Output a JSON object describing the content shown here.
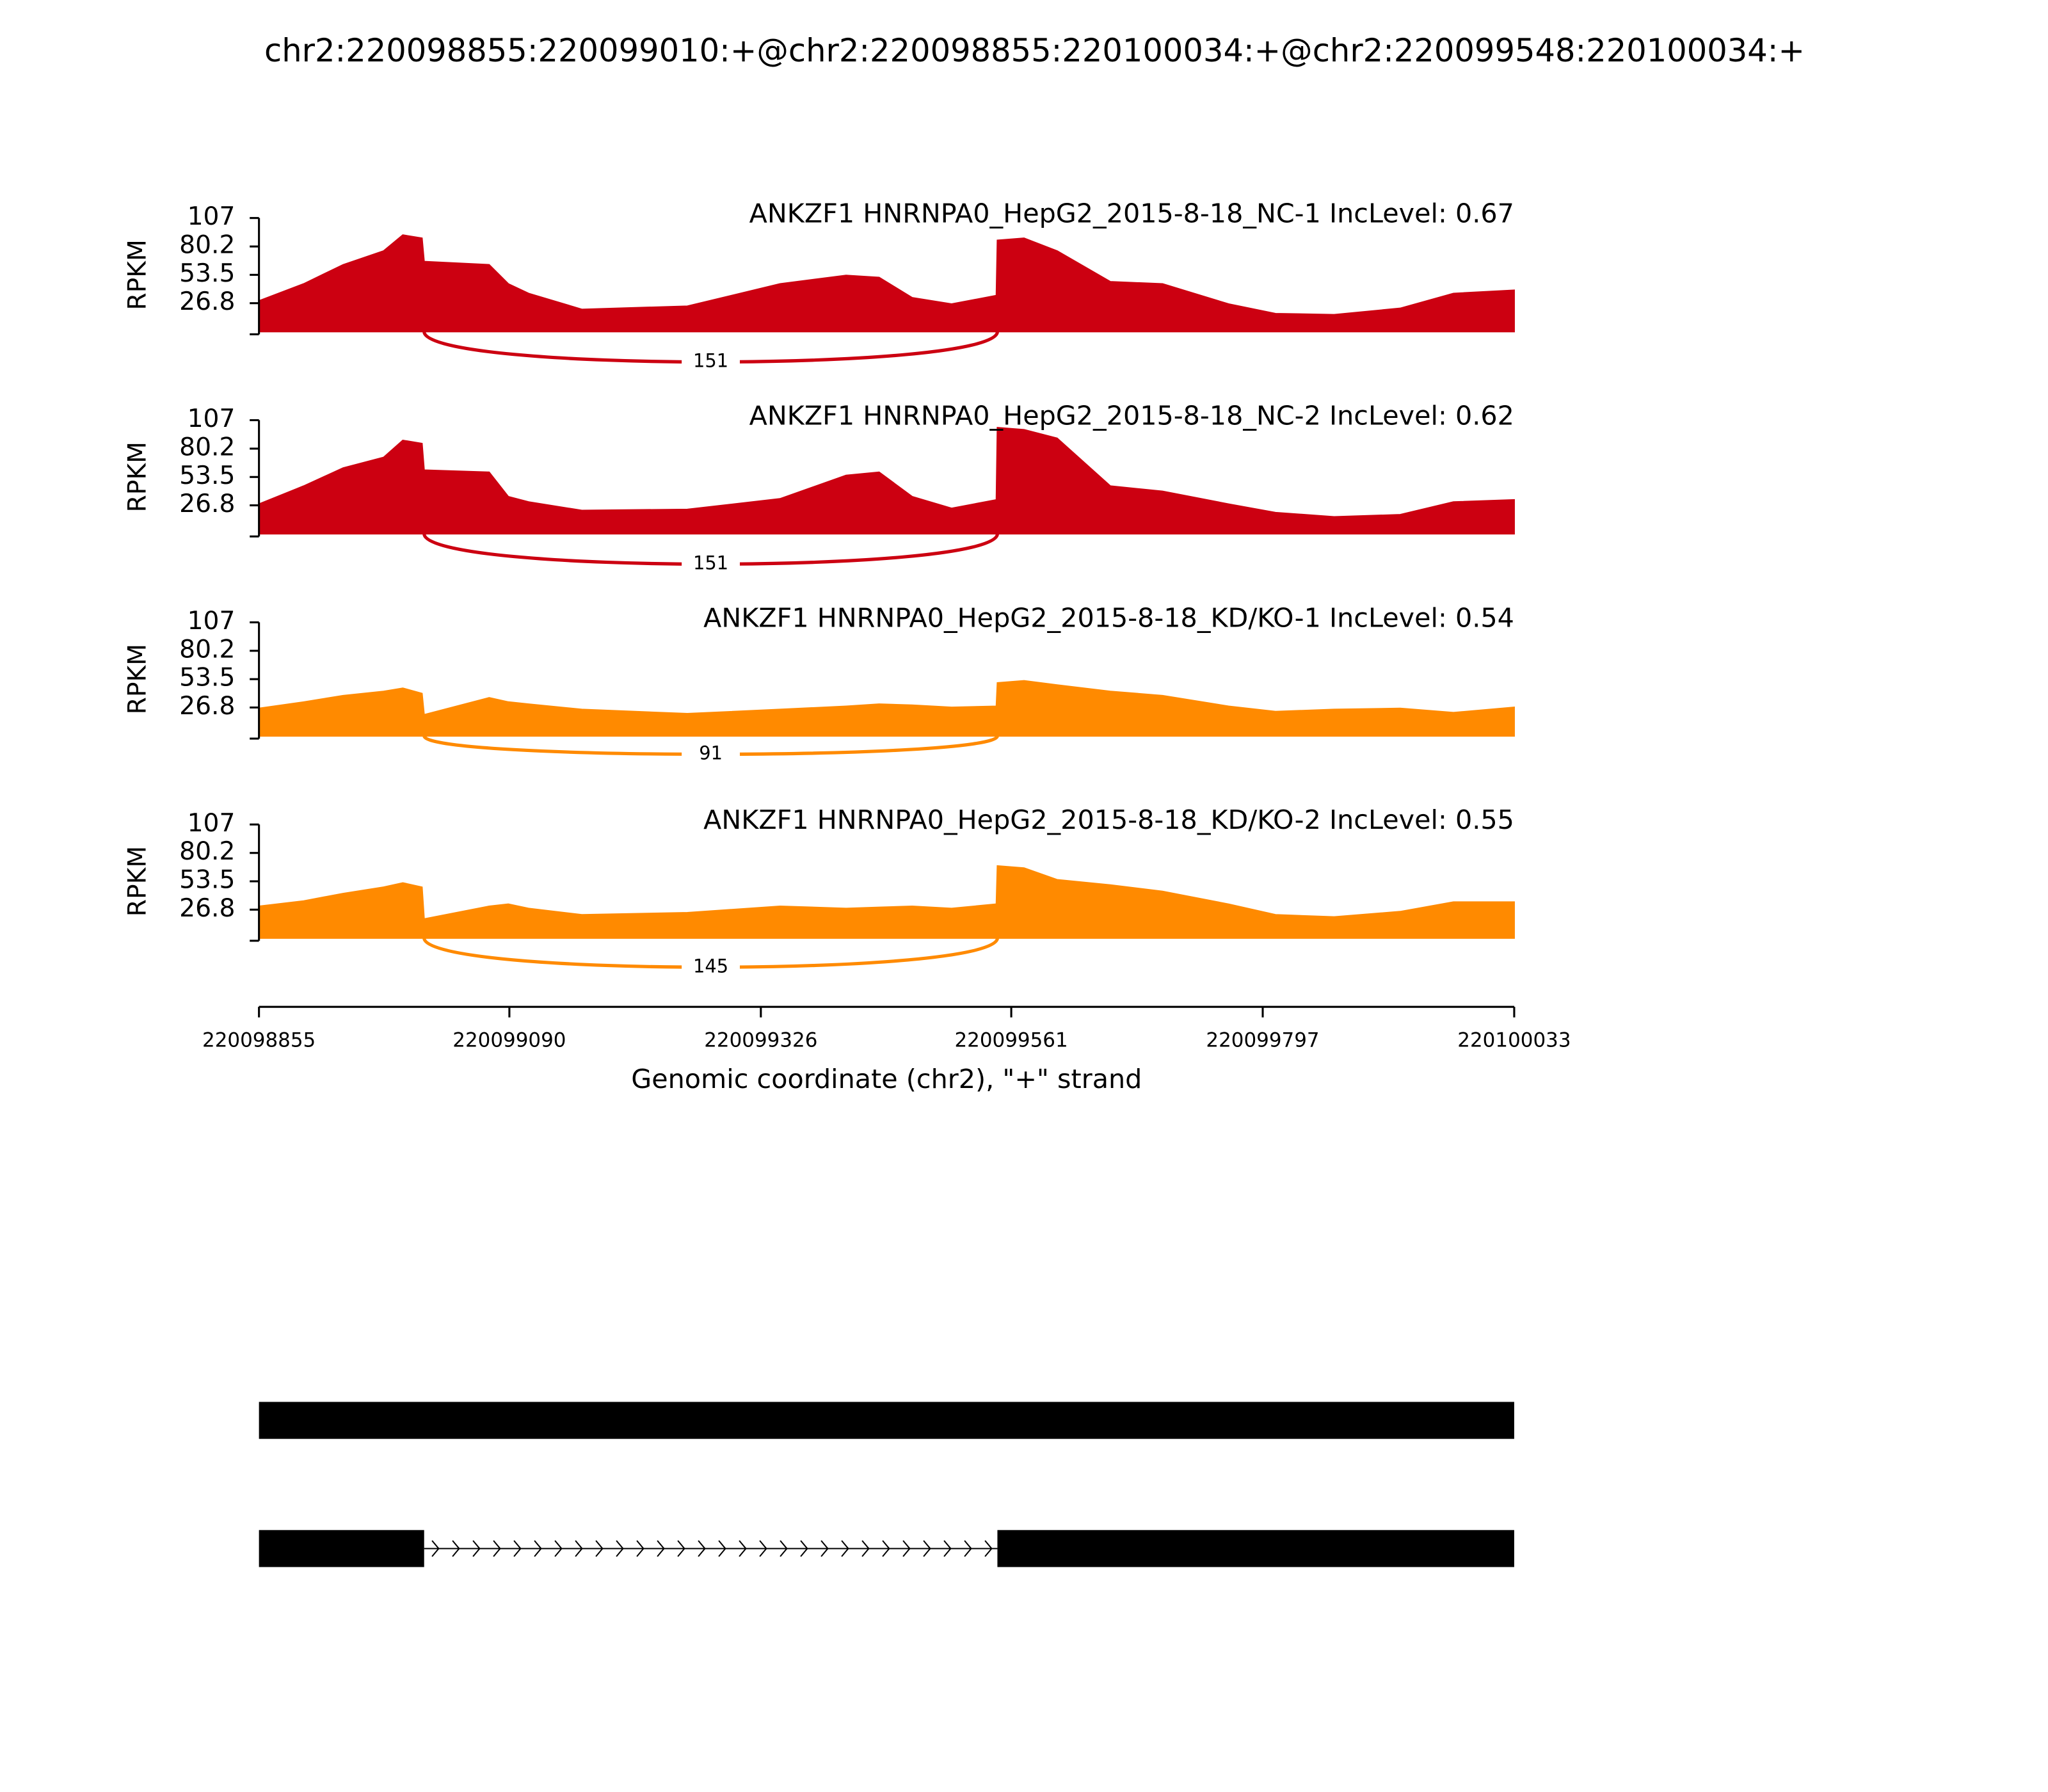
{
  "title": "chr2:220098855:220099010:+@chr2:220098855:220100034:+@chr2:220099548:220100034:+",
  "chart_data": [
    {
      "type": "area",
      "title": "ANKZF1 HNRNPA0_HepG2_2015-8-18_NC-1 IncLevel: 0.67",
      "color": "#cc0011",
      "ylabel": "RPKM",
      "xlim": [
        220098855,
        220100033
      ],
      "ylim": [
        0,
        107
      ],
      "yticks": [
        26.8,
        53.5,
        80.2,
        107
      ],
      "x": [
        220098855,
        220098897,
        220098934,
        220098972,
        220098990,
        220099008,
        220099010,
        220099071,
        220099089,
        220099108,
        220099158,
        220099257,
        220099344,
        220099406,
        220099437,
        220099468,
        220099505,
        220099547,
        220099548,
        220099573,
        220099604,
        220099654,
        220099703,
        220099765,
        220099809,
        220099864,
        220099926,
        220099976,
        220100033
      ],
      "values": [
        29,
        45,
        63,
        76,
        91,
        88,
        66,
        63,
        45,
        36,
        21,
        24,
        45,
        53,
        51,
        32,
        26,
        34,
        86,
        88,
        76,
        47,
        45,
        26,
        17,
        16,
        22,
        36,
        39
      ],
      "junctions": [
        {
          "start": 220099010,
          "end": 220099548,
          "count": 151
        }
      ]
    },
    {
      "type": "area",
      "title": "ANKZF1 HNRNPA0_HepG2_2015-8-18_NC-2 IncLevel: 0.62",
      "color": "#cc0011",
      "ylabel": "RPKM",
      "xlim": [
        220098855,
        220100033
      ],
      "ylim": [
        0,
        107
      ],
      "yticks": [
        26.8,
        53.5,
        80.2,
        107
      ],
      "x": [
        220098855,
        220098897,
        220098934,
        220098972,
        220098990,
        220099008,
        220099010,
        220099071,
        220099089,
        220099108,
        220099158,
        220099257,
        220099344,
        220099406,
        220099437,
        220099468,
        220099505,
        220099547,
        220099548,
        220099573,
        220099604,
        220099654,
        220099703,
        220099765,
        220099809,
        220099864,
        220099926,
        220099976,
        220100033
      ],
      "values": [
        28,
        45,
        62,
        72,
        88,
        85,
        60,
        58,
        35,
        30,
        22,
        23,
        33,
        55,
        58,
        35,
        24,
        32,
        100,
        98,
        90,
        45,
        40,
        28,
        20,
        16,
        18,
        30,
        32
      ],
      "junctions": [
        {
          "start": 220099010,
          "end": 220099548,
          "count": 151
        }
      ]
    },
    {
      "type": "area",
      "title": "ANKZF1 HNRNPA0_HepG2_2015-8-18_KD/KO-1 IncLevel: 0.54",
      "color": "#ff8a00",
      "ylabel": "RPKM",
      "xlim": [
        220098855,
        220100033
      ],
      "ylim": [
        0,
        107
      ],
      "yticks": [
        26.8,
        53.5,
        80.2,
        107
      ],
      "x": [
        220098855,
        220098897,
        220098934,
        220098972,
        220098990,
        220099008,
        220099010,
        220099071,
        220099089,
        220099108,
        220099158,
        220099257,
        220099344,
        220099406,
        220099437,
        220099468,
        220099505,
        220099547,
        220099548,
        220099573,
        220099604,
        220099654,
        220099703,
        220099765,
        220099809,
        220099864,
        220099926,
        220099976,
        220100033
      ],
      "values": [
        26,
        32,
        38,
        42,
        45,
        40,
        20,
        36,
        32,
        30,
        25,
        21,
        25,
        28,
        30,
        29,
        27,
        28,
        50,
        52,
        48,
        42,
        38,
        28,
        23,
        25,
        26,
        22,
        27
      ],
      "junctions": [
        {
          "start": 220099010,
          "end": 220099548,
          "count": 91
        }
      ]
    },
    {
      "type": "area",
      "title": "ANKZF1 HNRNPA0_HepG2_2015-8-18_KD/KO-2 IncLevel: 0.55",
      "color": "#ff8a00",
      "ylabel": "RPKM",
      "xlim": [
        220098855,
        220100033
      ],
      "ylim": [
        0,
        107
      ],
      "yticks": [
        26.8,
        53.5,
        80.2,
        107
      ],
      "x": [
        220098855,
        220098897,
        220098934,
        220098972,
        220098990,
        220099008,
        220099010,
        220099071,
        220099089,
        220099108,
        220099158,
        220099257,
        220099344,
        220099406,
        220099437,
        220099468,
        220099505,
        220099547,
        220099548,
        220099573,
        220099604,
        220099654,
        220099703,
        220099765,
        220099809,
        220099864,
        220099926,
        220099976,
        220100033
      ],
      "values": [
        30,
        35,
        42,
        48,
        52,
        48,
        18,
        30,
        32,
        28,
        22,
        24,
        30,
        28,
        29,
        30,
        28,
        32,
        68,
        66,
        55,
        50,
        44,
        32,
        22,
        20,
        25,
        34,
        34
      ],
      "junctions": [
        {
          "start": 220099010,
          "end": 220099548,
          "count": 145
        }
      ],
      "xticks": [
        220098855,
        220099090,
        220099326,
        220099561,
        220099797,
        220100033
      ],
      "xlabel": "Genomic coordinate (chr2), \"+\" strand"
    }
  ],
  "gene_model": {
    "transcripts": [
      {
        "exons": [
          [
            220098855,
            220100033
          ]
        ]
      },
      {
        "exons": [
          [
            220098855,
            220099010
          ],
          [
            220099548,
            220100033
          ]
        ]
      }
    ]
  }
}
